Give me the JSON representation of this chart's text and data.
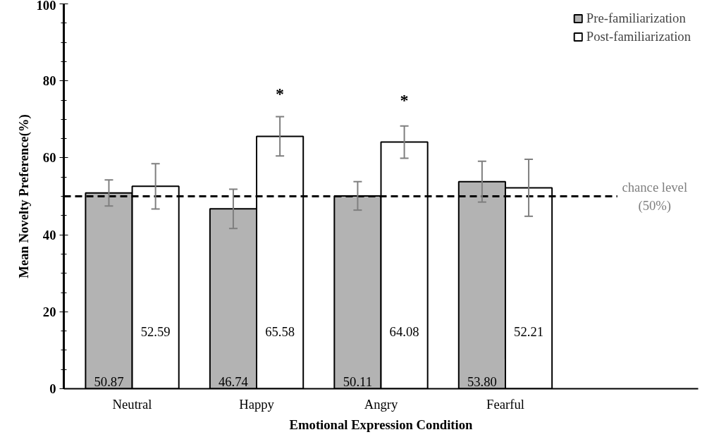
{
  "chart_data": {
    "type": "bar",
    "xlabel": "Emotional Expression Condition",
    "ylabel": "Mean Novelty Preference(%)",
    "categories": [
      "Neutral",
      "Happy",
      "Angry",
      "Fearful"
    ],
    "series": [
      {
        "name": "Pre-familiarization",
        "color": "#b3b3b3",
        "values": [
          50.87,
          46.74,
          50.11,
          53.8
        ],
        "value_labels": [
          "50.87",
          "46.74",
          "50.11",
          "53.80"
        ],
        "errors": [
          3.4,
          5.1,
          3.7,
          5.3
        ]
      },
      {
        "name": "Post-familiarization",
        "color": "#ffffff",
        "values": [
          52.59,
          65.58,
          64.08,
          52.21
        ],
        "value_labels": [
          "52.59",
          "65.58",
          "64.08",
          "52.21"
        ],
        "errors": [
          5.9,
          5.1,
          4.2,
          7.4
        ]
      }
    ],
    "ylim": [
      0,
      100
    ],
    "yticks": [
      0,
      20,
      40,
      60,
      80,
      100
    ],
    "grid": false,
    "legend": "top right",
    "ref_lines": [
      {
        "axis": "y",
        "value": 50,
        "label": "chance level\n(50%)",
        "color": "#000000",
        "line_style": "dashed"
      }
    ],
    "annotations": [
      {
        "text": "*",
        "x": "Happy",
        "y": 65.58
      },
      {
        "text": "*",
        "x": "Angry",
        "y": 64.08
      }
    ]
  }
}
